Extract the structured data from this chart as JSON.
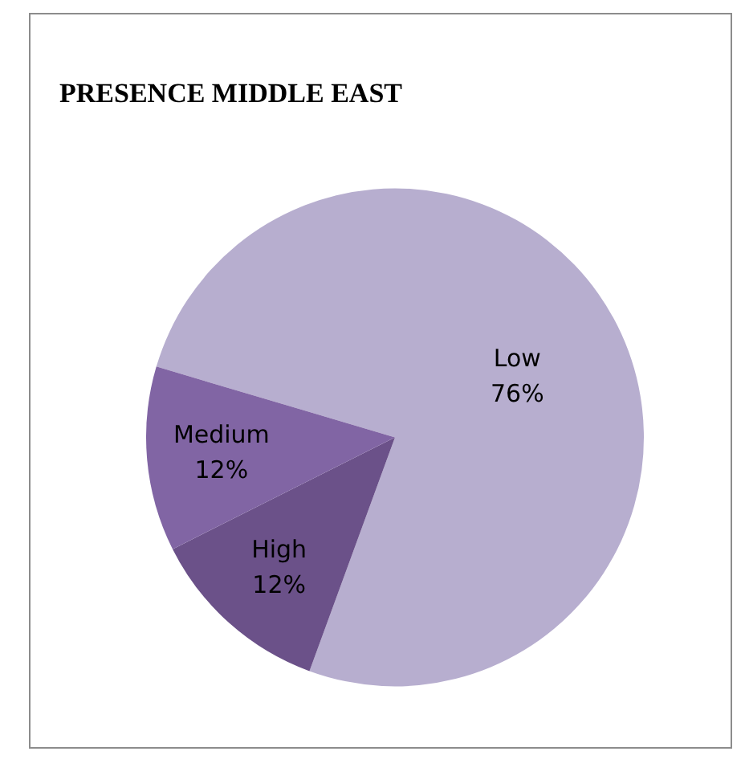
{
  "chart_data": {
    "type": "pie",
    "title": "PRESENCE MIDDLE EAST",
    "categories": [
      "Low",
      "High",
      "Medium"
    ],
    "values": [
      76,
      12,
      12
    ],
    "colors": [
      "#b7aecf",
      "#6b5189",
      "#8165a4"
    ],
    "value_labels": [
      "76%",
      "12%",
      "12%"
    ],
    "legend": false
  }
}
